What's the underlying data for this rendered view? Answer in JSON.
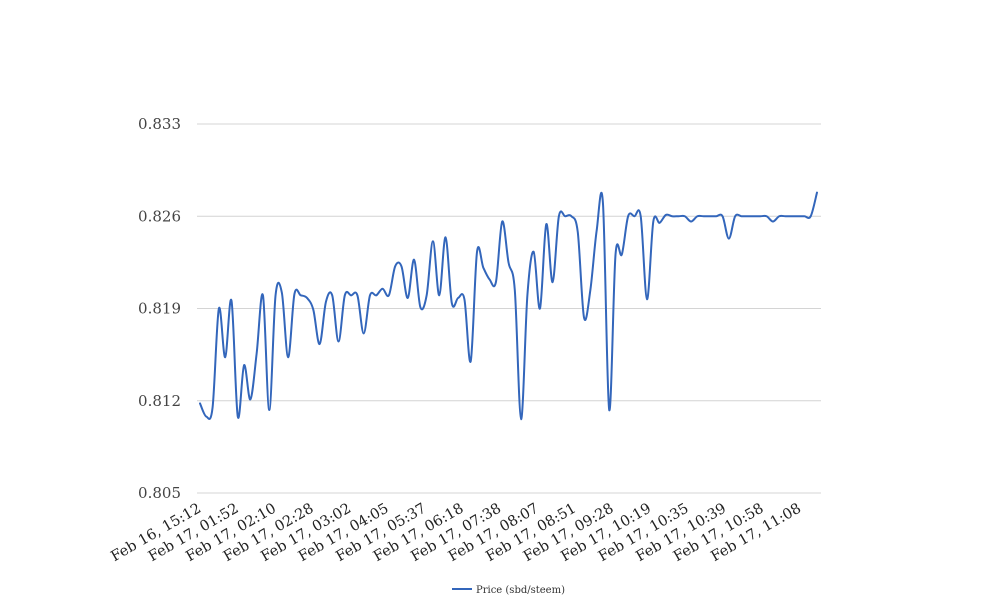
{
  "chart_data": {
    "type": "line",
    "title": "",
    "xlabel": "",
    "ylabel": "",
    "ylim": [
      0.805,
      0.833
    ],
    "yticks": [
      "0.805",
      "0.812",
      "0.819",
      "0.826",
      "0.833"
    ],
    "xtick_labels": [
      "Feb 16, 15:12",
      "Feb 17, 01:52",
      "Feb 17, 02:10",
      "Feb 17, 02:28",
      "Feb 17, 03:02",
      "Feb 17, 04:05",
      "Feb 17, 05:37",
      "Feb 17, 06:18",
      "Feb 17, 07:38",
      "Feb 17, 08:07",
      "Feb 17, 08:51",
      "Feb 17, 09:28",
      "Feb 17, 10:19",
      "Feb 17, 10:35",
      "Feb 17, 10:39",
      "Feb 17, 10:58",
      "Feb 17, 11:08"
    ],
    "grid": true,
    "legend_position": "bottom-center",
    "series": [
      {
        "name": "Price (sbd/steem)",
        "color": "#3366bb",
        "values": [
          0.8118,
          0.8108,
          0.8115,
          0.819,
          0.8153,
          0.8196,
          0.8108,
          0.8147,
          0.8121,
          0.8156,
          0.82,
          0.8113,
          0.82,
          0.8202,
          0.8153,
          0.8201,
          0.82,
          0.8198,
          0.8189,
          0.8163,
          0.8195,
          0.82,
          0.8165,
          0.82,
          0.82,
          0.82,
          0.8171,
          0.82,
          0.82,
          0.8205,
          0.82,
          0.8222,
          0.8222,
          0.8198,
          0.8227,
          0.8191,
          0.82,
          0.8241,
          0.82,
          0.8244,
          0.8194,
          0.8198,
          0.8197,
          0.815,
          0.8233,
          0.8221,
          0.8212,
          0.821,
          0.8256,
          0.8225,
          0.8204,
          0.8106,
          0.82,
          0.8233,
          0.819,
          0.8254,
          0.821,
          0.826,
          0.826,
          0.826,
          0.8248,
          0.8183,
          0.8204,
          0.8249,
          0.827,
          0.8113,
          0.8231,
          0.8231,
          0.826,
          0.826,
          0.826,
          0.8197,
          0.8256,
          0.8255,
          0.8261,
          0.826,
          0.826,
          0.826,
          0.8256,
          0.826,
          0.826,
          0.826,
          0.826,
          0.826,
          0.8243,
          0.826,
          0.826,
          0.826,
          0.826,
          0.826,
          0.826,
          0.8256,
          0.826,
          0.826,
          0.826,
          0.826,
          0.826,
          0.826,
          0.8278
        ]
      }
    ]
  }
}
